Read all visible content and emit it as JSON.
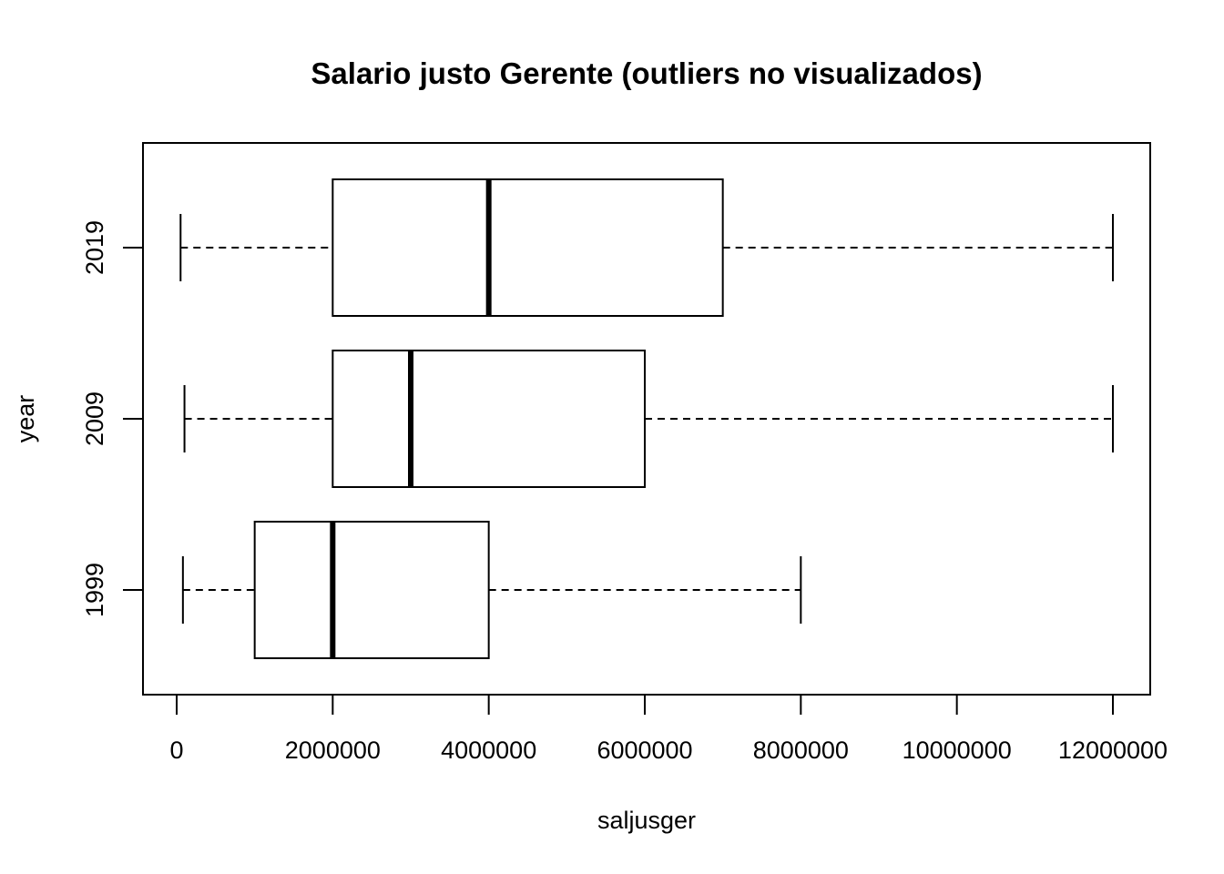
{
  "chart_data": {
    "type": "boxplot",
    "orientation": "horizontal",
    "title": "Salario justo Gerente (outliers no visualizados)",
    "xlabel": "saljusger",
    "ylabel": "year",
    "xlim": [
      -220000,
      12500000
    ],
    "xticks": [
      0,
      2000000,
      4000000,
      6000000,
      8000000,
      10000000,
      12000000
    ],
    "xtick_labels": [
      "0",
      "2000000",
      "4000000",
      "6000000",
      "8000000",
      "10000000",
      "12000000"
    ],
    "categories": [
      "1999",
      "2009",
      "2019"
    ],
    "boxes": [
      {
        "category": "1999",
        "whisker_low": 80000,
        "q1": 1000000,
        "median": 2000000,
        "q3": 4000000,
        "whisker_high": 8000000
      },
      {
        "category": "2009",
        "whisker_low": 100000,
        "q1": 2000000,
        "median": 3000000,
        "q3": 6000000,
        "whisker_high": 12000000
      },
      {
        "category": "2019",
        "whisker_low": 50000,
        "q1": 2000000,
        "median": 4000000,
        "q3": 7000000,
        "whisker_high": 12000000
      }
    ],
    "outliers_shown": false,
    "grid": false,
    "colors": {
      "box_fill": "#ffffff",
      "stroke": "#000000"
    }
  }
}
